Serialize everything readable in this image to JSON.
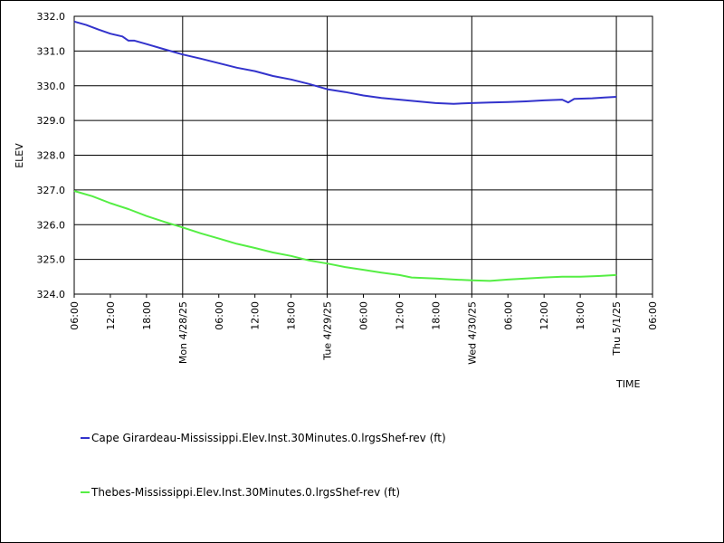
{
  "chart_data": {
    "type": "line",
    "xlabel": "TIME",
    "ylabel": "ELEV",
    "ylim": [
      324.0,
      332.0
    ],
    "xlim": [
      "2025-04-27T06:00",
      "2025-05-01T06:00"
    ],
    "y_ticks": [
      "324.0",
      "325.0",
      "326.0",
      "327.0",
      "328.0",
      "329.0",
      "330.0",
      "331.0",
      "332.0"
    ],
    "x_ticks": [
      {
        "t": "2025-04-27T06:00",
        "label": "06:00",
        "major": true
      },
      {
        "t": "2025-04-27T12:00",
        "label": "12:00",
        "major": false
      },
      {
        "t": "2025-04-27T18:00",
        "label": "18:00",
        "major": false
      },
      {
        "t": "2025-04-28T00:00",
        "label": "Mon 4/28/25",
        "major": true
      },
      {
        "t": "2025-04-28T06:00",
        "label": "06:00",
        "major": false
      },
      {
        "t": "2025-04-28T12:00",
        "label": "12:00",
        "major": false
      },
      {
        "t": "2025-04-28T18:00",
        "label": "18:00",
        "major": false
      },
      {
        "t": "2025-04-29T00:00",
        "label": "Tue 4/29/25",
        "major": true
      },
      {
        "t": "2025-04-29T06:00",
        "label": "06:00",
        "major": false
      },
      {
        "t": "2025-04-29T12:00",
        "label": "12:00",
        "major": false
      },
      {
        "t": "2025-04-29T18:00",
        "label": "18:00",
        "major": false
      },
      {
        "t": "2025-04-30T00:00",
        "label": "Wed 4/30/25",
        "major": true
      },
      {
        "t": "2025-04-30T06:00",
        "label": "06:00",
        "major": false
      },
      {
        "t": "2025-04-30T12:00",
        "label": "12:00",
        "major": false
      },
      {
        "t": "2025-04-30T18:00",
        "label": "18:00",
        "major": false
      },
      {
        "t": "2025-05-01T00:00",
        "label": "Thu 5/1/25",
        "major": true
      },
      {
        "t": "2025-05-01T06:00",
        "label": "06:00",
        "major": true
      }
    ],
    "grid": true,
    "legend_position": "bottom-left",
    "series": [
      {
        "name": "Cape Girardeau-Mississippi.Elev.Inst.30Minutes.0.lrgsShef-rev (ft)",
        "color": "#3333cc",
        "points": [
          [
            "2025-04-27T06:00",
            331.85
          ],
          [
            "2025-04-27T08:00",
            331.75
          ],
          [
            "2025-04-27T10:00",
            331.62
          ],
          [
            "2025-04-27T12:00",
            331.5
          ],
          [
            "2025-04-27T14:00",
            331.42
          ],
          [
            "2025-04-27T15:00",
            331.3
          ],
          [
            "2025-04-27T16:00",
            331.3
          ],
          [
            "2025-04-27T18:00",
            331.2
          ],
          [
            "2025-04-27T21:00",
            331.05
          ],
          [
            "2025-04-28T00:00",
            330.9
          ],
          [
            "2025-04-28T03:00",
            330.78
          ],
          [
            "2025-04-28T06:00",
            330.65
          ],
          [
            "2025-04-28T09:00",
            330.52
          ],
          [
            "2025-04-28T12:00",
            330.42
          ],
          [
            "2025-04-28T15:00",
            330.28
          ],
          [
            "2025-04-28T18:00",
            330.18
          ],
          [
            "2025-04-28T21:00",
            330.05
          ],
          [
            "2025-04-29T00:00",
            329.9
          ],
          [
            "2025-04-29T03:00",
            329.82
          ],
          [
            "2025-04-29T06:00",
            329.72
          ],
          [
            "2025-04-29T09:00",
            329.65
          ],
          [
            "2025-04-29T12:00",
            329.6
          ],
          [
            "2025-04-29T15:00",
            329.55
          ],
          [
            "2025-04-29T18:00",
            329.5
          ],
          [
            "2025-04-29T21:00",
            329.48
          ],
          [
            "2025-04-30T00:00",
            329.5
          ],
          [
            "2025-04-30T03:00",
            329.52
          ],
          [
            "2025-04-30T06:00",
            329.53
          ],
          [
            "2025-04-30T09:00",
            329.55
          ],
          [
            "2025-04-30T12:00",
            329.58
          ],
          [
            "2025-04-30T15:00",
            329.6
          ],
          [
            "2025-04-30T16:00",
            329.52
          ],
          [
            "2025-04-30T17:00",
            329.62
          ],
          [
            "2025-04-30T20:00",
            329.64
          ],
          [
            "2025-04-30T22:00",
            329.66
          ],
          [
            "2025-05-01T00:00",
            329.68
          ]
        ]
      },
      {
        "name": "Thebes-Mississippi.Elev.Inst.30Minutes.0.lrgsShef-rev (ft)",
        "color": "#55ee44",
        "points": [
          [
            "2025-04-27T06:00",
            326.97
          ],
          [
            "2025-04-27T09:00",
            326.82
          ],
          [
            "2025-04-27T12:00",
            326.62
          ],
          [
            "2025-04-27T15:00",
            326.45
          ],
          [
            "2025-04-27T18:00",
            326.25
          ],
          [
            "2025-04-27T21:00",
            326.08
          ],
          [
            "2025-04-28T00:00",
            325.92
          ],
          [
            "2025-04-28T03:00",
            325.75
          ],
          [
            "2025-04-28T06:00",
            325.6
          ],
          [
            "2025-04-28T09:00",
            325.45
          ],
          [
            "2025-04-28T12:00",
            325.33
          ],
          [
            "2025-04-28T15:00",
            325.2
          ],
          [
            "2025-04-28T18:00",
            325.1
          ],
          [
            "2025-04-28T21:00",
            324.97
          ],
          [
            "2025-04-29T00:00",
            324.88
          ],
          [
            "2025-04-29T03:00",
            324.78
          ],
          [
            "2025-04-29T06:00",
            324.7
          ],
          [
            "2025-04-29T09:00",
            324.62
          ],
          [
            "2025-04-29T12:00",
            324.55
          ],
          [
            "2025-04-29T14:00",
            324.48
          ],
          [
            "2025-04-29T18:00",
            324.45
          ],
          [
            "2025-04-29T21:00",
            324.42
          ],
          [
            "2025-04-30T00:00",
            324.4
          ],
          [
            "2025-04-30T03:00",
            324.38
          ],
          [
            "2025-04-30T06:00",
            324.42
          ],
          [
            "2025-04-30T09:00",
            324.45
          ],
          [
            "2025-04-30T12:00",
            324.48
          ],
          [
            "2025-04-30T15:00",
            324.5
          ],
          [
            "2025-04-30T18:00",
            324.5
          ],
          [
            "2025-04-30T21:00",
            324.52
          ],
          [
            "2025-05-01T00:00",
            324.55
          ]
        ]
      }
    ]
  }
}
